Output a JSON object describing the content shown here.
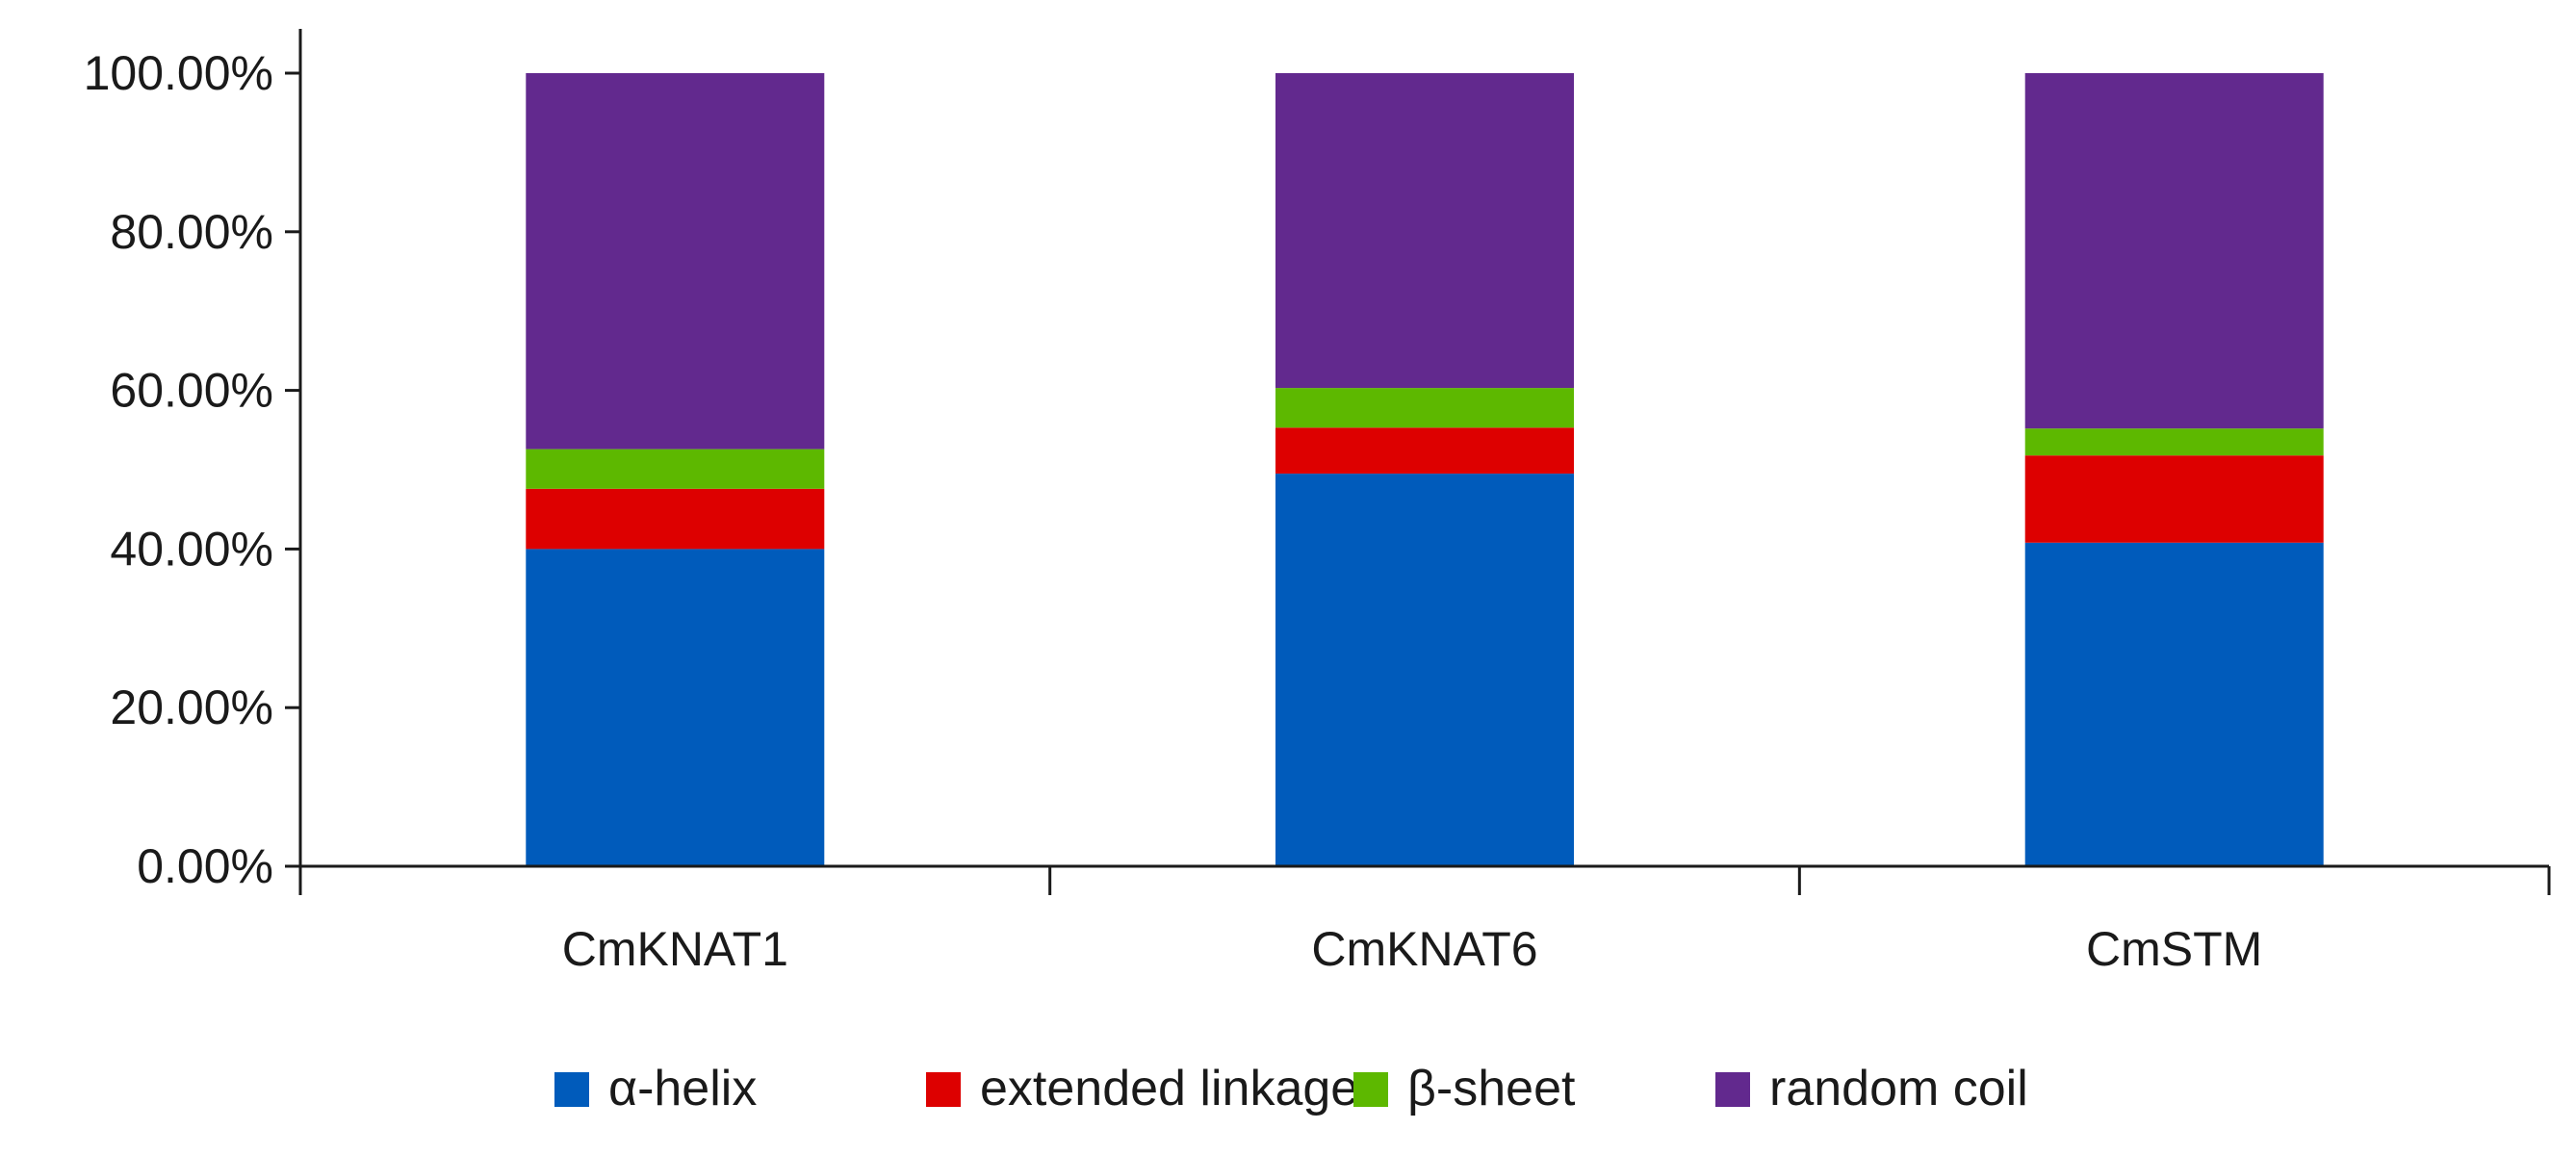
{
  "chart_data": {
    "type": "bar",
    "stacked": true,
    "categories": [
      "CmKNAT1",
      "CmKNAT6",
      "CmSTM"
    ],
    "series": [
      {
        "name": "α-helix",
        "color": "#005BBB",
        "values": [
          40.0,
          49.5,
          40.8
        ]
      },
      {
        "name": "extended linkage",
        "color": "#DD0000",
        "values": [
          7.6,
          5.8,
          11.0
        ]
      },
      {
        "name": "β-sheet",
        "color": "#5DB800",
        "values": [
          5.0,
          5.0,
          3.4
        ]
      },
      {
        "name": "random coil",
        "color": "#62298E",
        "values": [
          47.4,
          39.7,
          44.8
        ]
      }
    ],
    "y_ticks": [
      "0.00%",
      "20.00%",
      "40.00%",
      "60.00%",
      "80.00%",
      "100.00%"
    ],
    "ylim": [
      0,
      100
    ],
    "title": "",
    "xlabel": "",
    "ylabel": "",
    "grid": false,
    "legend_position": "bottom"
  }
}
